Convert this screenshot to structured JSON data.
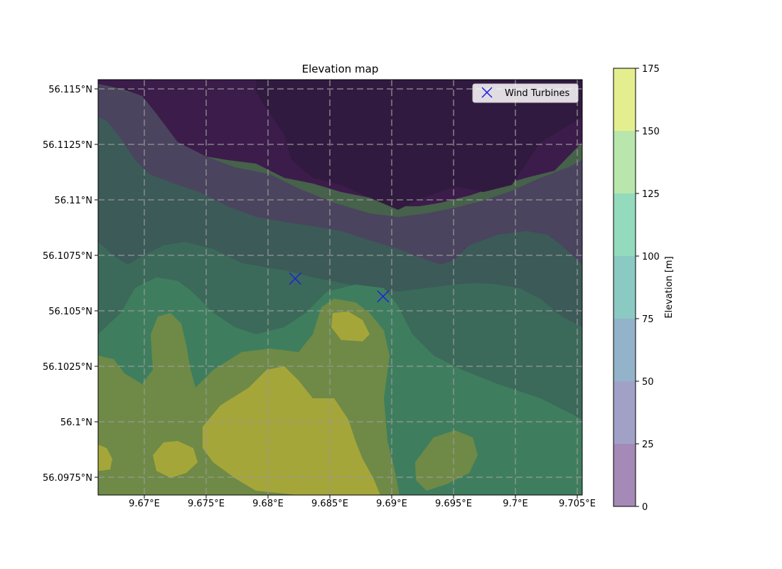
{
  "title": "Elevation map",
  "map": {
    "lon_ticks": [
      "9.67°E",
      "9.675°E",
      "9.68°E",
      "9.685°E",
      "9.69°E",
      "9.695°E",
      "9.7°E",
      "9.705°E"
    ],
    "lat_ticks": [
      "56.115°N",
      "56.1125°N",
      "56.11°N",
      "56.1075°N",
      "56.105°N",
      "56.1025°N",
      "56.1°N",
      "56.0975°N"
    ],
    "grid": "dashed"
  },
  "legend": {
    "label": "Wind Turbines",
    "marker": "x",
    "color": "#1f1fe0",
    "placement": "top-right"
  },
  "turbines": [
    {
      "lon": 9.6822,
      "lat": 56.10645
    },
    {
      "lon": 9.6893,
      "lat": 56.10565
    }
  ],
  "colorbar": {
    "label": "Elevation [m]",
    "levels": [
      "0",
      "25",
      "50",
      "75",
      "100",
      "125",
      "150",
      "175"
    ],
    "colors": [
      "#a589b6",
      "#a1a1c8",
      "#92b3c9",
      "#8bcac3",
      "#94dbbd",
      "#b8e6ad",
      "#e5ee8e"
    ]
  }
}
